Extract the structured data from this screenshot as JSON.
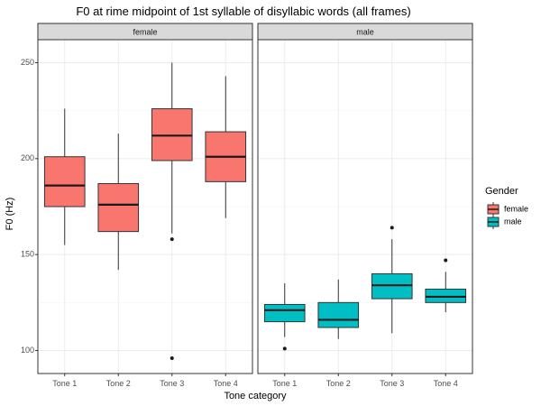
{
  "chart_data": {
    "type": "boxplot",
    "title": "F0 at rime midpoint of 1st syllable of disyllabic words (all frames)",
    "xlabel": "Tone category",
    "ylabel": "F0 (Hz)",
    "categories": [
      "Tone 1",
      "Tone 2",
      "Tone 3",
      "Tone 4"
    ],
    "ylim": [
      88,
      262
    ],
    "yticks": [
      100,
      150,
      200,
      250
    ],
    "grid": true,
    "legend": {
      "title": "Gender",
      "position": "right",
      "entries": [
        {
          "label": "female",
          "color": "#F8766D"
        },
        {
          "label": "male",
          "color": "#00BFC4"
        }
      ]
    },
    "panels": [
      {
        "label": "female",
        "color": "#F8766D",
        "boxes": [
          {
            "category": "Tone 1",
            "min": 155,
            "q1": 175,
            "median": 186,
            "q3": 201,
            "max": 226,
            "outliers": []
          },
          {
            "category": "Tone 2",
            "min": 142,
            "q1": 162,
            "median": 176,
            "q3": 187,
            "max": 213,
            "outliers": []
          },
          {
            "category": "Tone 3",
            "min": 161,
            "q1": 199,
            "median": 212,
            "q3": 226,
            "max": 250,
            "outliers": [
              158,
              96
            ]
          },
          {
            "category": "Tone 4",
            "min": 169,
            "q1": 188,
            "median": 201,
            "q3": 214,
            "max": 243,
            "outliers": []
          }
        ]
      },
      {
        "label": "male",
        "color": "#00BFC4",
        "boxes": [
          {
            "category": "Tone 1",
            "min": 107,
            "q1": 115,
            "median": 121,
            "q3": 124,
            "max": 135,
            "outliers": [
              101
            ]
          },
          {
            "category": "Tone 2",
            "min": 106,
            "q1": 112,
            "median": 116,
            "q3": 125,
            "max": 137,
            "outliers": []
          },
          {
            "category": "Tone 3",
            "min": 109,
            "q1": 127,
            "median": 134,
            "q3": 140,
            "max": 158,
            "outliers": [
              164
            ]
          },
          {
            "category": "Tone 4",
            "min": 120,
            "q1": 125,
            "median": 128,
            "q3": 132,
            "max": 141,
            "outliers": [
              147
            ]
          }
        ]
      }
    ]
  }
}
